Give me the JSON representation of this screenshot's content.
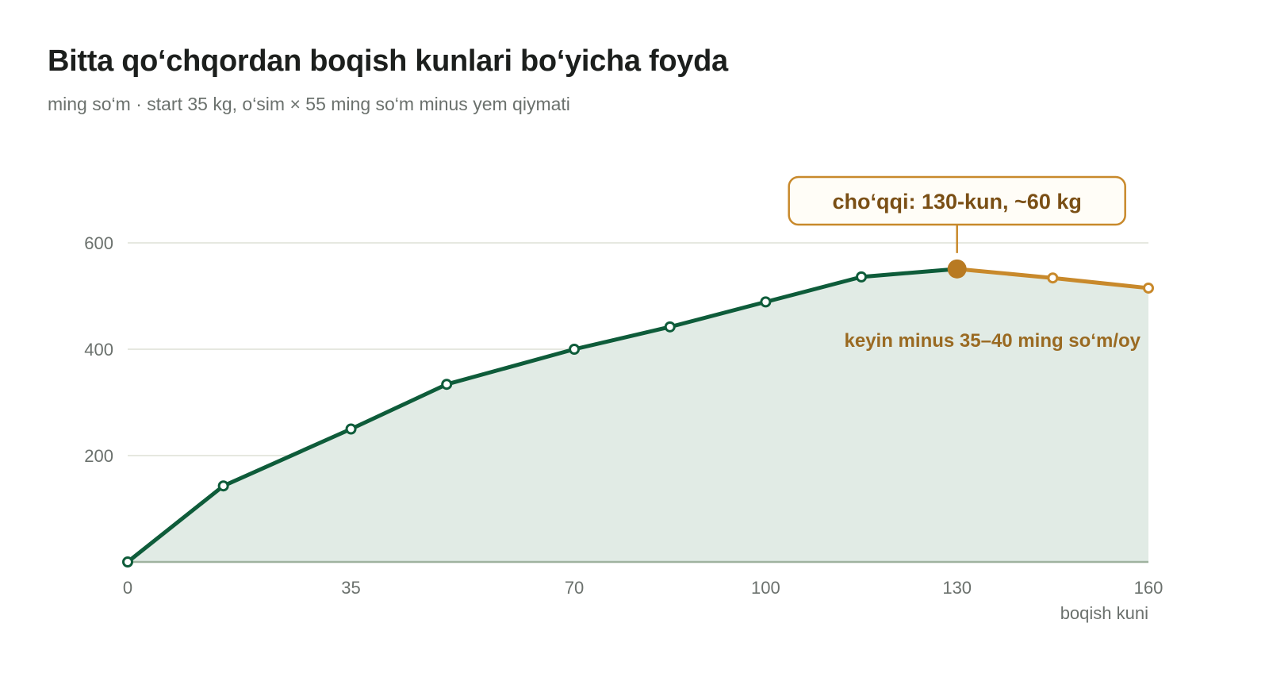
{
  "title": "Bitta qo‘chqordan boqish kunlari bo‘yicha foyda",
  "subtitle": "ming so‘m · start 35 kg, o‘sim × 55 ming so‘m minus yem qiymati",
  "colors": {
    "growth_line": "#0e5c3a",
    "decline_line": "#c8892b",
    "peak_point": "#b87a22",
    "area_fill": "#e1ebe5",
    "grid": "#dde0d6",
    "baseline": "#9fb39f",
    "callout_border": "#c8892b",
    "callout_text": "#7a4f15",
    "note_text": "#9a6a22"
  },
  "chart_data": {
    "type": "area",
    "x": [
      0,
      15,
      35,
      50,
      70,
      85,
      100,
      115,
      130,
      145,
      160
    ],
    "y": [
      0,
      143,
      250,
      334,
      400,
      442,
      489,
      536,
      551,
      534,
      515
    ],
    "xlim": [
      0,
      160
    ],
    "ylim": [
      0,
      600
    ],
    "x_ticks": [
      0,
      35,
      70,
      100,
      130,
      160
    ],
    "y_ticks": [
      200,
      400,
      600
    ],
    "xlabel": "boqish kuni",
    "ylabel": "",
    "grid": true,
    "peak_index": 8,
    "callout": "cho‘qqi: 130-kun, ~60 kg",
    "note": "keyin minus 35–40 ming so‘m/oy"
  }
}
